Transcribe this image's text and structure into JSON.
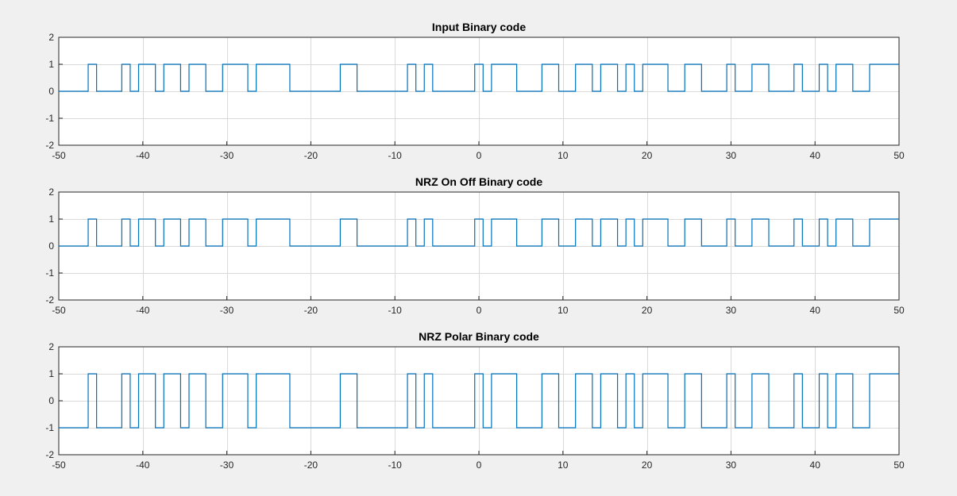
{
  "figure": {
    "background": "#f0f0f0"
  },
  "chart_data": [
    {
      "type": "line",
      "step": "post",
      "title": "Input Binary code",
      "xlabel": "",
      "ylabel": "",
      "xlim": [
        -50,
        50
      ],
      "ylim": [
        -2,
        2
      ],
      "xticks": [
        -50,
        -40,
        -30,
        -20,
        -10,
        0,
        10,
        20,
        30,
        40,
        50
      ],
      "yticks": [
        -2,
        -1,
        0,
        1,
        2
      ],
      "grid": true,
      "series": [
        {
          "color": "#0072bd",
          "x": [
            -50,
            -46.5,
            -45.5,
            -42.5,
            -41.5,
            -40.5,
            -39.5,
            -38.5,
            -37.5,
            -36.5,
            -35.5,
            -34.5,
            -33.5,
            -32.5,
            -30.5,
            -29.5,
            -27.5,
            -26.5,
            -22.5,
            -16.5,
            -14.5,
            -8.5,
            -7.5,
            -6.5,
            -5.5,
            -0.5,
            0.5,
            1.5,
            4.5,
            7.5,
            9.5,
            11.5,
            13.5,
            14.5,
            16.5,
            17.5,
            18.5,
            19.5,
            21.5,
            22.5,
            24.5,
            26.5,
            29.5,
            30.5,
            32.5,
            34.5,
            37.5,
            38.5,
            40.5,
            41.5,
            42.5,
            44.5,
            46.5,
            50
          ],
          "y": [
            0,
            1,
            0,
            1,
            0,
            1,
            1,
            0,
            1,
            1,
            0,
            1,
            1,
            0,
            1,
            1,
            0,
            1,
            0,
            1,
            0,
            1,
            0,
            1,
            0,
            1,
            0,
            1,
            0,
            1,
            0,
            1,
            0,
            1,
            0,
            1,
            0,
            1,
            1,
            0,
            1,
            0,
            1,
            0,
            1,
            0,
            1,
            0,
            1,
            0,
            1,
            0,
            1,
            1
          ]
        }
      ]
    },
    {
      "type": "line",
      "step": "post",
      "title": "NRZ On Off Binary code",
      "xlabel": "",
      "ylabel": "",
      "xlim": [
        -50,
        50
      ],
      "ylim": [
        -2,
        2
      ],
      "xticks": [
        -50,
        -40,
        -30,
        -20,
        -10,
        0,
        10,
        20,
        30,
        40,
        50
      ],
      "yticks": [
        -2,
        -1,
        0,
        1,
        2
      ],
      "grid": true,
      "series": [
        {
          "color": "#0072bd",
          "x": [
            -50,
            -46.5,
            -45.5,
            -42.5,
            -41.5,
            -40.5,
            -39.5,
            -38.5,
            -37.5,
            -36.5,
            -35.5,
            -34.5,
            -33.5,
            -32.5,
            -30.5,
            -29.5,
            -27.5,
            -26.5,
            -22.5,
            -16.5,
            -14.5,
            -8.5,
            -7.5,
            -6.5,
            -5.5,
            -0.5,
            0.5,
            1.5,
            4.5,
            7.5,
            9.5,
            11.5,
            13.5,
            14.5,
            16.5,
            17.5,
            18.5,
            19.5,
            21.5,
            22.5,
            24.5,
            26.5,
            29.5,
            30.5,
            32.5,
            34.5,
            37.5,
            38.5,
            40.5,
            41.5,
            42.5,
            44.5,
            46.5,
            50
          ],
          "y": [
            0,
            1,
            0,
            1,
            0,
            1,
            1,
            0,
            1,
            1,
            0,
            1,
            1,
            0,
            1,
            1,
            0,
            1,
            0,
            1,
            0,
            1,
            0,
            1,
            0,
            1,
            0,
            1,
            0,
            1,
            0,
            1,
            0,
            1,
            0,
            1,
            0,
            1,
            1,
            0,
            1,
            0,
            1,
            0,
            1,
            0,
            1,
            0,
            1,
            0,
            1,
            0,
            1,
            1
          ]
        }
      ]
    },
    {
      "type": "line",
      "step": "post",
      "title": "NRZ Polar Binary code",
      "xlabel": "",
      "ylabel": "",
      "xlim": [
        -50,
        50
      ],
      "ylim": [
        -2,
        2
      ],
      "xticks": [
        -50,
        -40,
        -30,
        -20,
        -10,
        0,
        10,
        20,
        30,
        40,
        50
      ],
      "yticks": [
        -2,
        -1,
        0,
        1,
        2
      ],
      "grid": true,
      "series": [
        {
          "color": "#0072bd",
          "x": [
            -50,
            -46.5,
            -45.5,
            -42.5,
            -41.5,
            -40.5,
            -39.5,
            -38.5,
            -37.5,
            -36.5,
            -35.5,
            -34.5,
            -33.5,
            -32.5,
            -30.5,
            -29.5,
            -27.5,
            -26.5,
            -22.5,
            -16.5,
            -14.5,
            -8.5,
            -7.5,
            -6.5,
            -5.5,
            -0.5,
            0.5,
            1.5,
            4.5,
            7.5,
            9.5,
            11.5,
            13.5,
            14.5,
            16.5,
            17.5,
            18.5,
            19.5,
            21.5,
            22.5,
            24.5,
            26.5,
            29.5,
            30.5,
            32.5,
            34.5,
            37.5,
            38.5,
            40.5,
            41.5,
            42.5,
            44.5,
            46.5,
            50
          ],
          "y": [
            -1,
            1,
            -1,
            1,
            -1,
            1,
            1,
            -1,
            1,
            1,
            -1,
            1,
            1,
            -1,
            1,
            1,
            -1,
            1,
            -1,
            1,
            -1,
            1,
            -1,
            1,
            -1,
            1,
            -1,
            1,
            -1,
            1,
            -1,
            1,
            -1,
            1,
            -1,
            1,
            -1,
            1,
            1,
            -1,
            1,
            -1,
            1,
            -1,
            1,
            -1,
            1,
            -1,
            1,
            -1,
            1,
            -1,
            1,
            1
          ]
        }
      ]
    }
  ]
}
